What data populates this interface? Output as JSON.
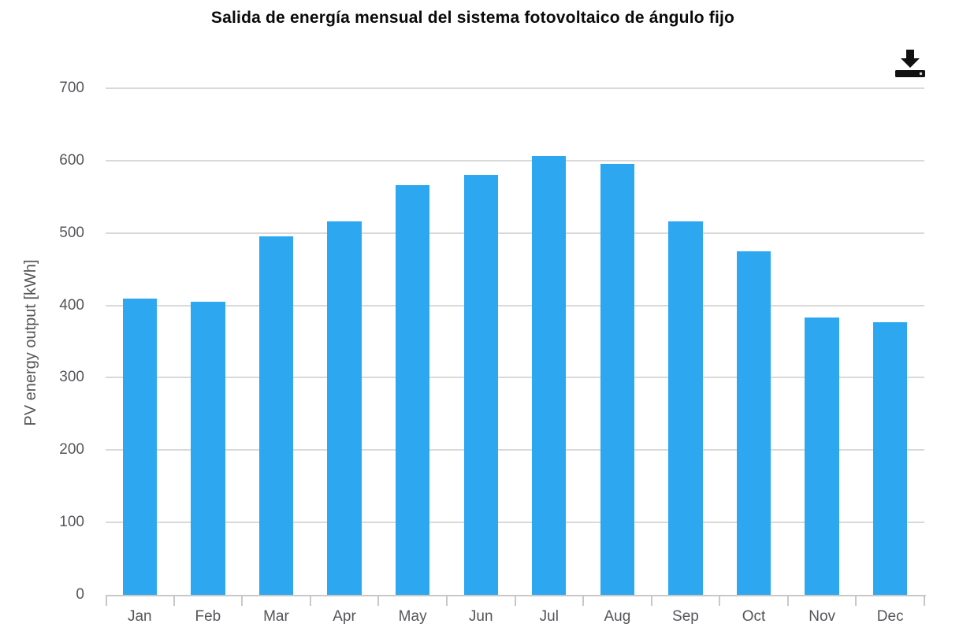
{
  "header": {
    "title": "Salida de energía mensual del sistema fotovoltaico de ángulo fijo"
  },
  "toolbar": {
    "download_icon": "download-icon",
    "icon_color": "#111111"
  },
  "chart_data": {
    "type": "bar",
    "title": "Salida de energía mensual del sistema fotovoltaico de ángulo fijo",
    "xlabel": "",
    "ylabel": "PV energy output [kWh]",
    "categories": [
      "Jan",
      "Feb",
      "Mar",
      "Apr",
      "May",
      "Jun",
      "Jul",
      "Aug",
      "Sep",
      "Oct",
      "Nov",
      "Dec"
    ],
    "values": [
      409,
      405,
      495,
      516,
      566,
      580,
      606,
      595,
      516,
      475,
      383,
      377
    ],
    "ylim": [
      0,
      700
    ],
    "yticks": [
      0,
      100,
      200,
      300,
      400,
      500,
      600,
      700
    ],
    "grid": true,
    "legend": "none",
    "bar_color": "#2da8f0",
    "grid_color": "#d9d9d9",
    "axis_color": "#c8c8c8",
    "tick_label_color": "#55565a",
    "title_color": "#0a0a0a",
    "bar_width_ratio": 0.5
  }
}
